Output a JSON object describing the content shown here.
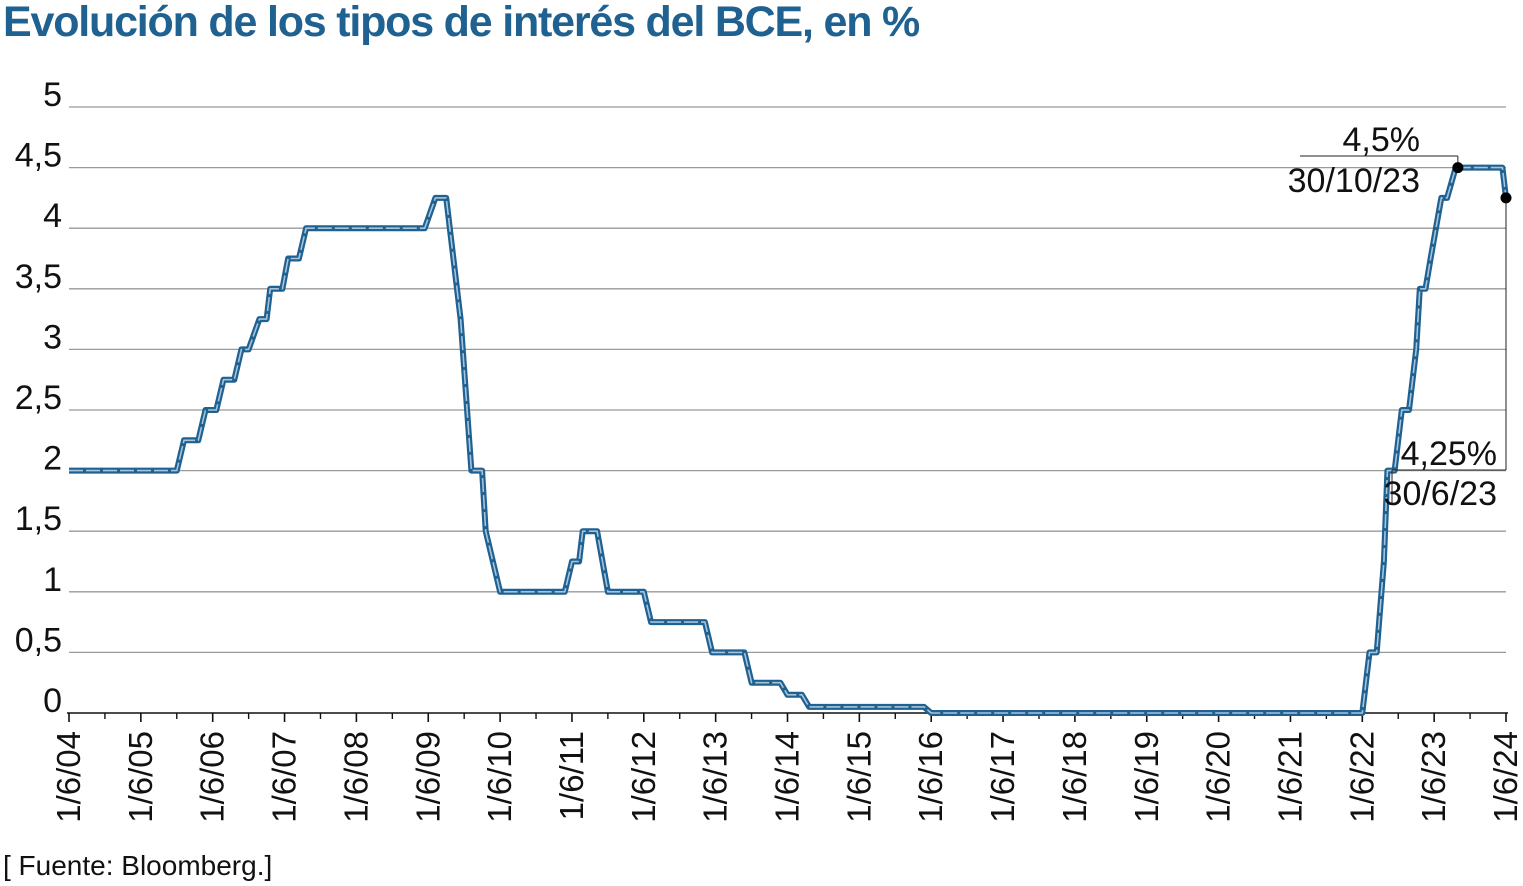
{
  "title": "Evolución de los tipos de interés del BCE, en %",
  "source": "[ Fuente: Bloomberg.]",
  "colors": {
    "line": "#1f6190",
    "line_inner": "#a7c4dc",
    "grid": "#9a9a9a",
    "title": "#1f6190"
  },
  "chart_data": {
    "type": "line",
    "title": "Evolución de los tipos de interés del BCE, en %",
    "xlabel": "",
    "ylabel": "",
    "ylim": [
      0,
      5
    ],
    "xlim": [
      2004.0,
      2024.0
    ],
    "grid": true,
    "legend": "none",
    "y_ticks": [
      {
        "value": 0,
        "label": "0"
      },
      {
        "value": 0.5,
        "label": "0,5"
      },
      {
        "value": 1,
        "label": "1"
      },
      {
        "value": 1.5,
        "label": "1,5"
      },
      {
        "value": 2,
        "label": "2"
      },
      {
        "value": 2.5,
        "label": "2,5"
      },
      {
        "value": 3,
        "label": "3"
      },
      {
        "value": 3.5,
        "label": "3,5"
      },
      {
        "value": 4,
        "label": "4"
      },
      {
        "value": 4.5,
        "label": "4,5"
      },
      {
        "value": 5,
        "label": "5"
      }
    ],
    "x_ticks": [
      {
        "value": 2004.0,
        "label": "1/6/04"
      },
      {
        "value": 2005.0,
        "label": "1/6/05"
      },
      {
        "value": 2006.0,
        "label": "1/6/06"
      },
      {
        "value": 2007.0,
        "label": "1/6/07"
      },
      {
        "value": 2008.0,
        "label": "1/6/08"
      },
      {
        "value": 2009.0,
        "label": "1/6/09"
      },
      {
        "value": 2010.0,
        "label": "1/6/10"
      },
      {
        "value": 2011.0,
        "label": "1/6/11"
      },
      {
        "value": 2012.0,
        "label": "1/6/12"
      },
      {
        "value": 2013.0,
        "label": "1/6/13"
      },
      {
        "value": 2014.0,
        "label": "1/6/14"
      },
      {
        "value": 2015.0,
        "label": "1/6/15"
      },
      {
        "value": 2016.0,
        "label": "1/6/16"
      },
      {
        "value": 2017.0,
        "label": "1/6/17"
      },
      {
        "value": 2018.0,
        "label": "1/6/18"
      },
      {
        "value": 2019.0,
        "label": "1/6/19"
      },
      {
        "value": 2020.0,
        "label": "1/6/20"
      },
      {
        "value": 2021.0,
        "label": "1/6/21"
      },
      {
        "value": 2022.0,
        "label": "1/6/22"
      },
      {
        "value": 2023.0,
        "label": "1/6/23"
      },
      {
        "value": 2024.0,
        "label": "1/6/24"
      }
    ],
    "minor_x_ticks": [
      2004.5,
      2005.5,
      2006.5,
      2007.5,
      2008.5,
      2009.5,
      2010.5,
      2011.5,
      2012.5,
      2013.5,
      2014.5,
      2015.5,
      2016.5,
      2017.5,
      2018.5,
      2019.5,
      2020.5,
      2021.5,
      2022.5,
      2023.5
    ],
    "series": [
      {
        "points": [
          [
            2004.0,
            2.0
          ],
          [
            2005.5,
            2.0
          ],
          [
            2005.6,
            2.25
          ],
          [
            2005.8,
            2.25
          ],
          [
            2005.9,
            2.5
          ],
          [
            2006.05,
            2.5
          ],
          [
            2006.15,
            2.75
          ],
          [
            2006.3,
            2.75
          ],
          [
            2006.4,
            3.0
          ],
          [
            2006.5,
            3.0
          ],
          [
            2006.65,
            3.25
          ],
          [
            2006.75,
            3.25
          ],
          [
            2006.8,
            3.5
          ],
          [
            2006.97,
            3.5
          ],
          [
            2007.05,
            3.75
          ],
          [
            2007.2,
            3.75
          ],
          [
            2007.3,
            4.0
          ],
          [
            2008.95,
            4.0
          ],
          [
            2009.1,
            4.25
          ],
          [
            2009.25,
            4.25
          ],
          [
            2009.45,
            3.25
          ],
          [
            2009.6,
            2.0
          ],
          [
            2009.75,
            2.0
          ],
          [
            2009.8,
            1.5
          ],
          [
            2010.0,
            1.0
          ],
          [
            2010.9,
            1.0
          ],
          [
            2011.0,
            1.25
          ],
          [
            2011.1,
            1.25
          ],
          [
            2011.15,
            1.5
          ],
          [
            2011.35,
            1.5
          ],
          [
            2011.5,
            1.0
          ],
          [
            2012.0,
            1.0
          ],
          [
            2012.1,
            0.75
          ],
          [
            2012.85,
            0.75
          ],
          [
            2012.95,
            0.5
          ],
          [
            2013.4,
            0.5
          ],
          [
            2013.5,
            0.25
          ],
          [
            2013.9,
            0.25
          ],
          [
            2014.0,
            0.15
          ],
          [
            2014.2,
            0.15
          ],
          [
            2014.3,
            0.05
          ],
          [
            2015.9,
            0.05
          ],
          [
            2016.0,
            0.0
          ],
          [
            2022.0,
            0.0
          ],
          [
            2022.1,
            0.5
          ],
          [
            2022.2,
            0.5
          ],
          [
            2022.3,
            1.25
          ],
          [
            2022.35,
            2.0
          ],
          [
            2022.45,
            2.0
          ],
          [
            2022.55,
            2.5
          ],
          [
            2022.65,
            2.5
          ],
          [
            2022.75,
            3.0
          ],
          [
            2022.8,
            3.5
          ],
          [
            2022.88,
            3.5
          ],
          [
            2022.95,
            3.75
          ],
          [
            2023.1,
            4.25
          ],
          [
            2023.18,
            4.25
          ],
          [
            2023.3,
            4.5
          ],
          [
            2023.95,
            4.5
          ],
          [
            2024.0,
            4.25
          ]
        ]
      }
    ],
    "annotations": [
      {
        "value_label": "4,5%",
        "date_label": "30/10/23",
        "x": 2023.33,
        "y": 4.5
      },
      {
        "value_label": "4,25%",
        "date_label": "30/6/23",
        "x": 2024.0,
        "y": 4.25
      }
    ]
  }
}
